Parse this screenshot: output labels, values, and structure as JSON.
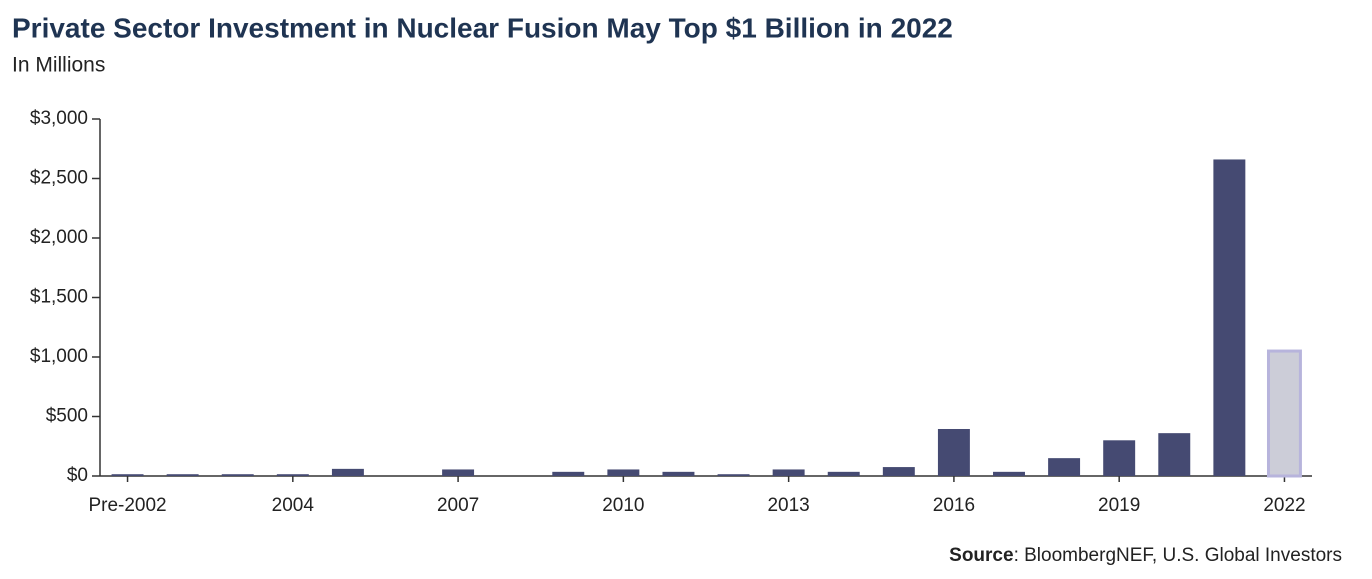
{
  "chart_data": {
    "type": "bar",
    "title": "Private Sector Investment in Nuclear Fusion May Top $1 Billion in 2022",
    "subtitle": "In Millions",
    "categories": [
      "Pre-2002",
      null,
      null,
      "2004",
      null,
      null,
      "2007",
      null,
      null,
      "2010",
      null,
      null,
      "2013",
      null,
      null,
      "2016",
      null,
      null,
      "2019",
      null,
      null,
      "2022"
    ],
    "values": [
      15,
      15,
      15,
      15,
      60,
      0,
      55,
      0,
      35,
      55,
      35,
      15,
      55,
      35,
      75,
      395,
      35,
      150,
      300,
      360,
      2660,
      1050
    ],
    "colors": [
      "#454a72",
      "#454a72",
      "#454a72",
      "#454a72",
      "#454a72",
      "#454a72",
      "#454a72",
      "#454a72",
      "#454a72",
      "#454a72",
      "#454a72",
      "#454a72",
      "#454a72",
      "#454a72",
      "#454a72",
      "#454a72",
      "#454a72",
      "#454a72",
      "#454a72",
      "#454a72",
      "#454a72",
      "#cccdd8"
    ],
    "ylim": [
      0,
      3000
    ],
    "yticks": [
      {
        "value": 0,
        "label": "$0"
      },
      {
        "value": 500,
        "label": "$500"
      },
      {
        "value": 1000,
        "label": "$1,000"
      },
      {
        "value": 1500,
        "label": "$1,500"
      },
      {
        "value": 2000,
        "label": "$2,000"
      },
      {
        "value": 2500,
        "label": "$2,500"
      },
      {
        "value": 3000,
        "label": "$3,000"
      }
    ],
    "grid": false,
    "source_label": "Source",
    "source": ": BloombergNEF, U.S. Global Investors"
  }
}
